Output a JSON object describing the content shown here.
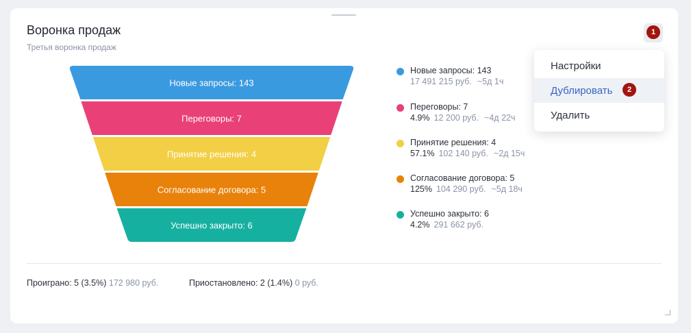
{
  "widget": {
    "title": "Воронка продаж",
    "subtitle": "Третья воронка продаж"
  },
  "menu": {
    "trigger_icon": "kebab-menu-icon",
    "badge_1": "1",
    "badge_2": "2",
    "items": [
      {
        "label": "Настройки"
      },
      {
        "label": "Дублировать"
      },
      {
        "label": "Удалить"
      }
    ]
  },
  "chart_data": {
    "type": "funnel",
    "stages": [
      {
        "name": "Новые запросы",
        "value": 143,
        "funnel_label": "Новые запросы:  143",
        "legend_label": "Новые запросы: 143",
        "percent": "",
        "amount": "17 491 215 руб.",
        "duration": "~5д 1ч",
        "color": "#3a9ae0"
      },
      {
        "name": "Переговоры",
        "value": 7,
        "funnel_label": "Переговоры:  7",
        "legend_label": "Переговоры: 7",
        "percent": "4.9%",
        "amount": "12 200 руб.",
        "duration": "~4д 22ч",
        "color": "#e94078"
      },
      {
        "name": "Принятие решения",
        "value": 4,
        "funnel_label": "Принятие решения:  4",
        "legend_label": "Принятие решения: 4",
        "percent": "57.1%",
        "amount": "102 140 руб.",
        "duration": "~2д 15ч",
        "color": "#f2cf45"
      },
      {
        "name": "Согласование договора",
        "value": 5,
        "funnel_label": "Согласование договора:  5",
        "legend_label": "Согласование договора: 5",
        "percent": "125%",
        "amount": "104 290 руб.",
        "duration": "~5д 18ч",
        "color": "#e8820a"
      },
      {
        "name": "Успешно закрыто",
        "value": 6,
        "funnel_label": "Успешно закрыто:  6",
        "legend_label": "Успешно закрыто: 6",
        "percent": "4.2%",
        "amount": "291 662 руб.",
        "duration": "",
        "color": "#16b0a0"
      }
    ]
  },
  "footer": {
    "lost_label": "Проиграно: 5 (3.5%)",
    "lost_amount": "172 980 руб.",
    "paused_label": "Приостановлено: 2 (1.4%)",
    "paused_amount": "0 руб."
  }
}
